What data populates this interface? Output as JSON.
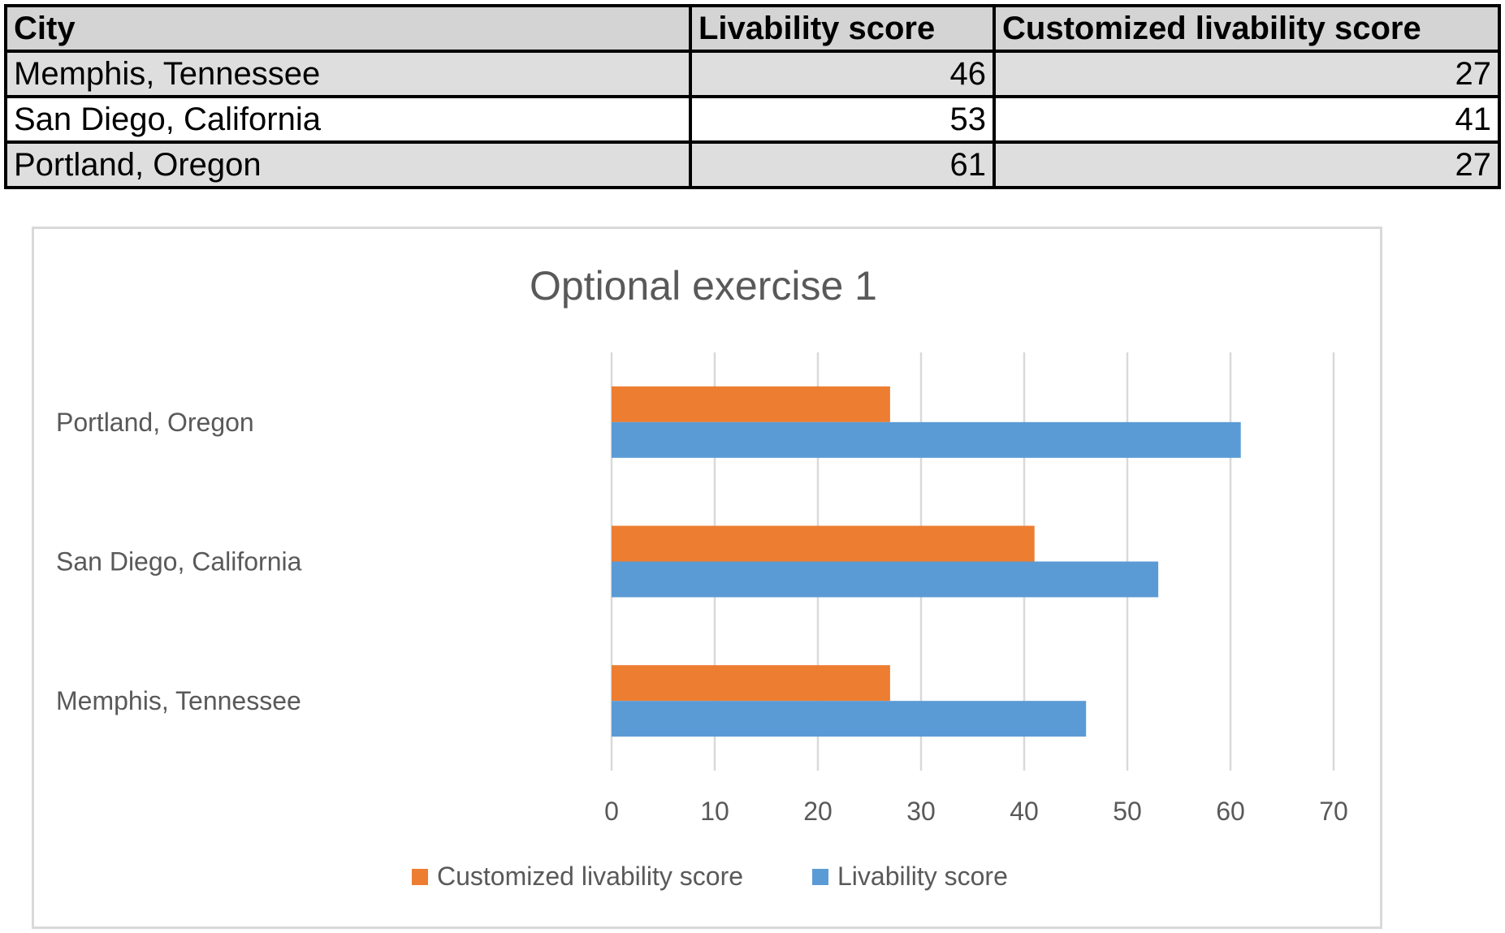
{
  "table": {
    "headers": [
      "City",
      "Livability score",
      "Customized livability score"
    ],
    "rows": [
      {
        "city": "Memphis, Tennessee",
        "livability": "46",
        "customized": "27"
      },
      {
        "city": "San Diego, California",
        "livability": "53",
        "customized": "41"
      },
      {
        "city": "Portland, Oregon",
        "livability": "61",
        "customized": "27"
      }
    ]
  },
  "chart_data": {
    "type": "bar",
    "orientation": "horizontal",
    "title": "Optional exercise 1",
    "xlabel": "",
    "ylabel": "",
    "categories": [
      "Memphis, Tennessee",
      "San Diego, California",
      "Portland, Oregon"
    ],
    "series": [
      {
        "name": "Customized livability score",
        "values": [
          27,
          41,
          27
        ],
        "color": "#ed7d31"
      },
      {
        "name": "Livability score",
        "values": [
          46,
          53,
          61
        ],
        "color": "#5b9bd5"
      }
    ],
    "xlim": [
      0,
      70
    ],
    "xticks": [
      0,
      10,
      20,
      30,
      40,
      50,
      60,
      70
    ],
    "grid": "vertical",
    "legend_position": "bottom"
  }
}
